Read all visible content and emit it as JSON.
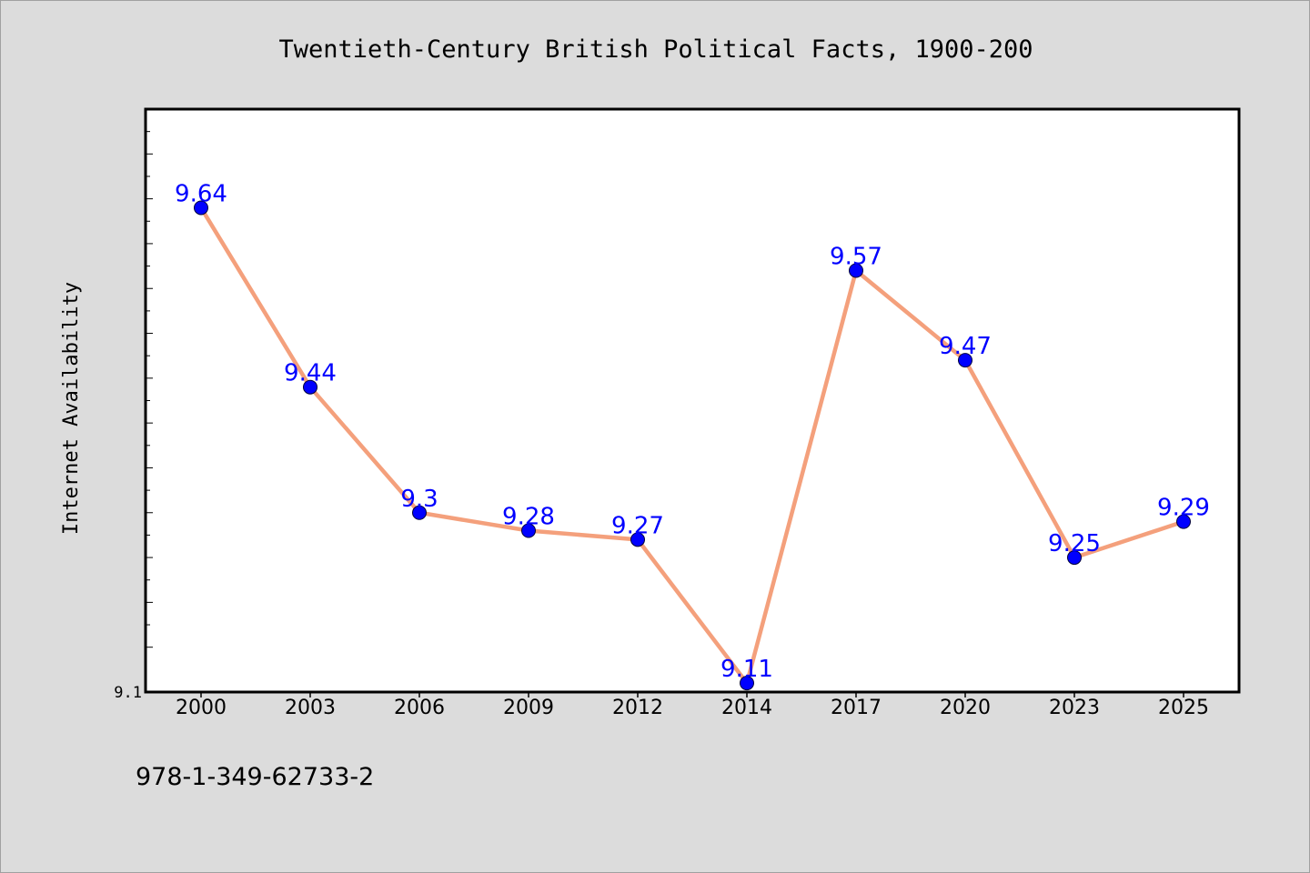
{
  "chart_data": {
    "type": "line",
    "title": "Twentieth-Century British Political Facts, 1900-200",
    "xlabel": "",
    "ylabel": "Internet Availability",
    "categories": [
      "2000",
      "2003",
      "2006",
      "2009",
      "2012",
      "2014",
      "2017",
      "2020",
      "2023",
      "2025"
    ],
    "series": [
      {
        "values": [
          9.64,
          9.44,
          9.3,
          9.28,
          9.27,
          9.11,
          9.57,
          9.47,
          9.25,
          9.29
        ]
      }
    ],
    "data_labels": [
      "9.64",
      "9.44",
      "9.3",
      "9.28",
      "9.27",
      "9.11",
      "9.57",
      "9.47",
      "9.25",
      "9.29"
    ],
    "ylim": [
      9.1,
      9.75
    ],
    "ytick_labels": [
      "9.1"
    ],
    "grid": false,
    "legend": "none",
    "line_color": "#f4a07c",
    "marker_color": "#0000ff",
    "label_color": "#0000ff"
  },
  "footer": {
    "isbn": "978-1-349-62733-2"
  }
}
